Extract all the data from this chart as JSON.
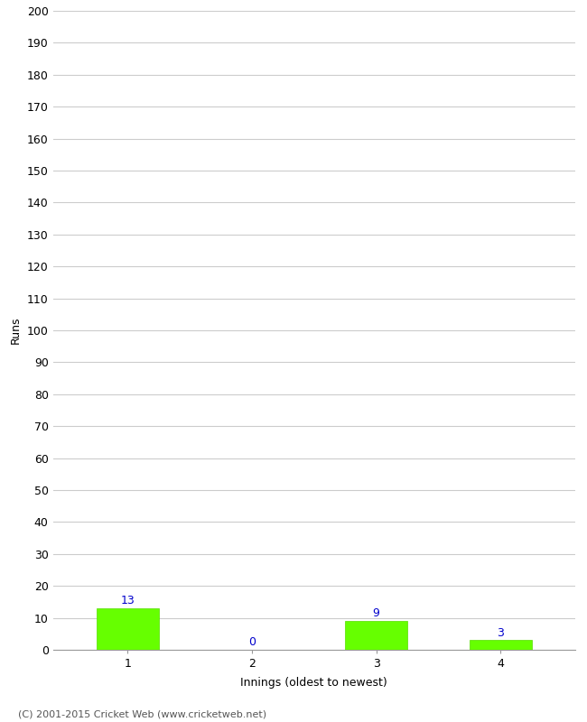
{
  "categories": [
    "1",
    "2",
    "3",
    "4"
  ],
  "values": [
    13,
    0,
    9,
    3
  ],
  "bar_color": "#66ff00",
  "bar_edge_color": "#55dd00",
  "value_labels": [
    "13",
    "0",
    "9",
    "3"
  ],
  "value_label_color": "#0000cc",
  "ylabel": "Runs",
  "xlabel": "Innings (oldest to newest)",
  "ylim": [
    0,
    200
  ],
  "yticks": [
    0,
    10,
    20,
    30,
    40,
    50,
    60,
    70,
    80,
    90,
    100,
    110,
    120,
    130,
    140,
    150,
    160,
    170,
    180,
    190,
    200
  ],
  "footer": "(C) 2001-2015 Cricket Web (www.cricketweb.net)",
  "background_color": "#ffffff",
  "grid_color": "#cccccc",
  "bar_width": 0.5
}
